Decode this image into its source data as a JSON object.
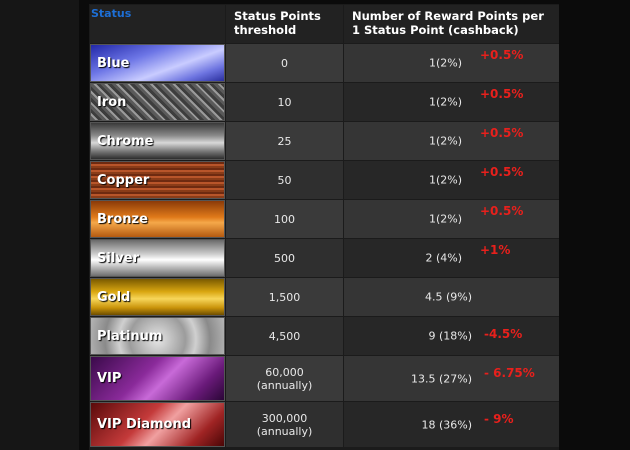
{
  "header": {
    "status": "Status",
    "threshold": "Status Points threshold",
    "reward": "Number of Reward Points per 1 Status Point (cashback)"
  },
  "rows": [
    {
      "status": "Blue",
      "threshold": "0",
      "reward": "1(2%)",
      "bonus": "+0.5%"
    },
    {
      "status": "Iron",
      "threshold": "10",
      "reward": "1(2%)",
      "bonus": "+0.5%"
    },
    {
      "status": "Chrome",
      "threshold": "25",
      "reward": "1(2%)",
      "bonus": "+0.5%"
    },
    {
      "status": "Copper",
      "threshold": "50",
      "reward": "1(2%)",
      "bonus": "+0.5%"
    },
    {
      "status": "Bronze",
      "threshold": "100",
      "reward": "1(2%)",
      "bonus": "+0.5%"
    },
    {
      "status": "Silver",
      "threshold": "500",
      "reward": "2 (4%)",
      "bonus": "+1%"
    },
    {
      "status": "Gold",
      "threshold": "1,500",
      "reward": "4.5 (9%)",
      "bonus": ""
    },
    {
      "status": "Platinum",
      "threshold": "4,500",
      "reward": "9 (18%)",
      "bonus": "-4.5%"
    },
    {
      "status": "VIP",
      "threshold": "60,000",
      "threshold_note": "(annually)",
      "reward": "13.5 (27%)",
      "bonus": "- 6.75%"
    },
    {
      "status": "VIP Diamond",
      "threshold": "300,000",
      "threshold_note": "(annually)",
      "reward": "18 (36%)",
      "bonus": "- 9%"
    }
  ],
  "colors": {
    "accent": "#1d6fd6",
    "bonus": "#e8201c"
  }
}
